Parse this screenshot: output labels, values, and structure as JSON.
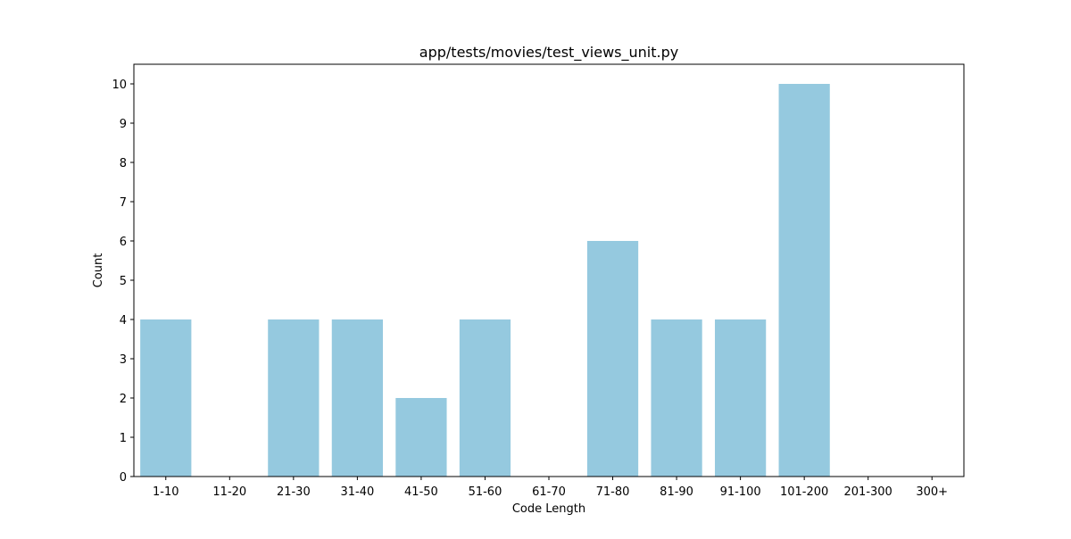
{
  "chart_data": {
    "type": "bar",
    "title": "app/tests/movies/test_views_unit.py",
    "xlabel": "Code Length",
    "ylabel": "Count",
    "categories": [
      "1-10",
      "11-20",
      "21-30",
      "31-40",
      "41-50",
      "51-60",
      "61-70",
      "71-80",
      "81-90",
      "91-100",
      "101-200",
      "201-300",
      "300+"
    ],
    "values": [
      4,
      0,
      4,
      4,
      2,
      4,
      0,
      6,
      4,
      4,
      10,
      0,
      0
    ],
    "yticks": [
      "0",
      "1",
      "2",
      "3",
      "4",
      "5",
      "6",
      "7",
      "8",
      "9",
      "10"
    ],
    "ylim": [
      0,
      10.5
    ],
    "grid": false,
    "bar_color": "#95c9df"
  }
}
